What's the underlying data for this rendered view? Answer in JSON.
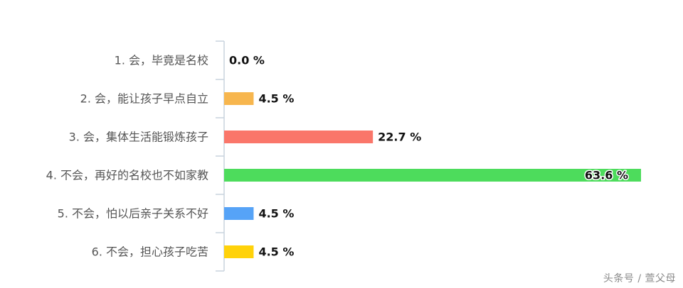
{
  "chart_data": {
    "type": "bar",
    "orientation": "horizontal",
    "title": "",
    "xlabel": "",
    "ylabel": "",
    "xlim": [
      0,
      63.6
    ],
    "grid": false,
    "legend": "none",
    "categories": [
      "1. 会，毕竟是名校",
      "2. 会，能让孩子早点自立",
      "3. 会，集体生活能锻炼孩子",
      "4. 不会，再好的名校也不如家教",
      "5. 不会，怕以后亲子关系不好",
      "6. 不会，担心孩子吃苦"
    ],
    "values": [
      0.0,
      4.5,
      22.7,
      63.6,
      4.5,
      4.5
    ],
    "value_labels": [
      "0.0 %",
      "4.5 %",
      "22.7 %",
      "63.6 %",
      "4.5 %",
      "4.5 %"
    ],
    "colors": [
      "#f7b64e",
      "#f7b64e",
      "#fa766a",
      "#4ddc5c",
      "#56a3f7",
      "#ffd20a"
    ]
  },
  "watermark": "头条号 / 萱父母"
}
